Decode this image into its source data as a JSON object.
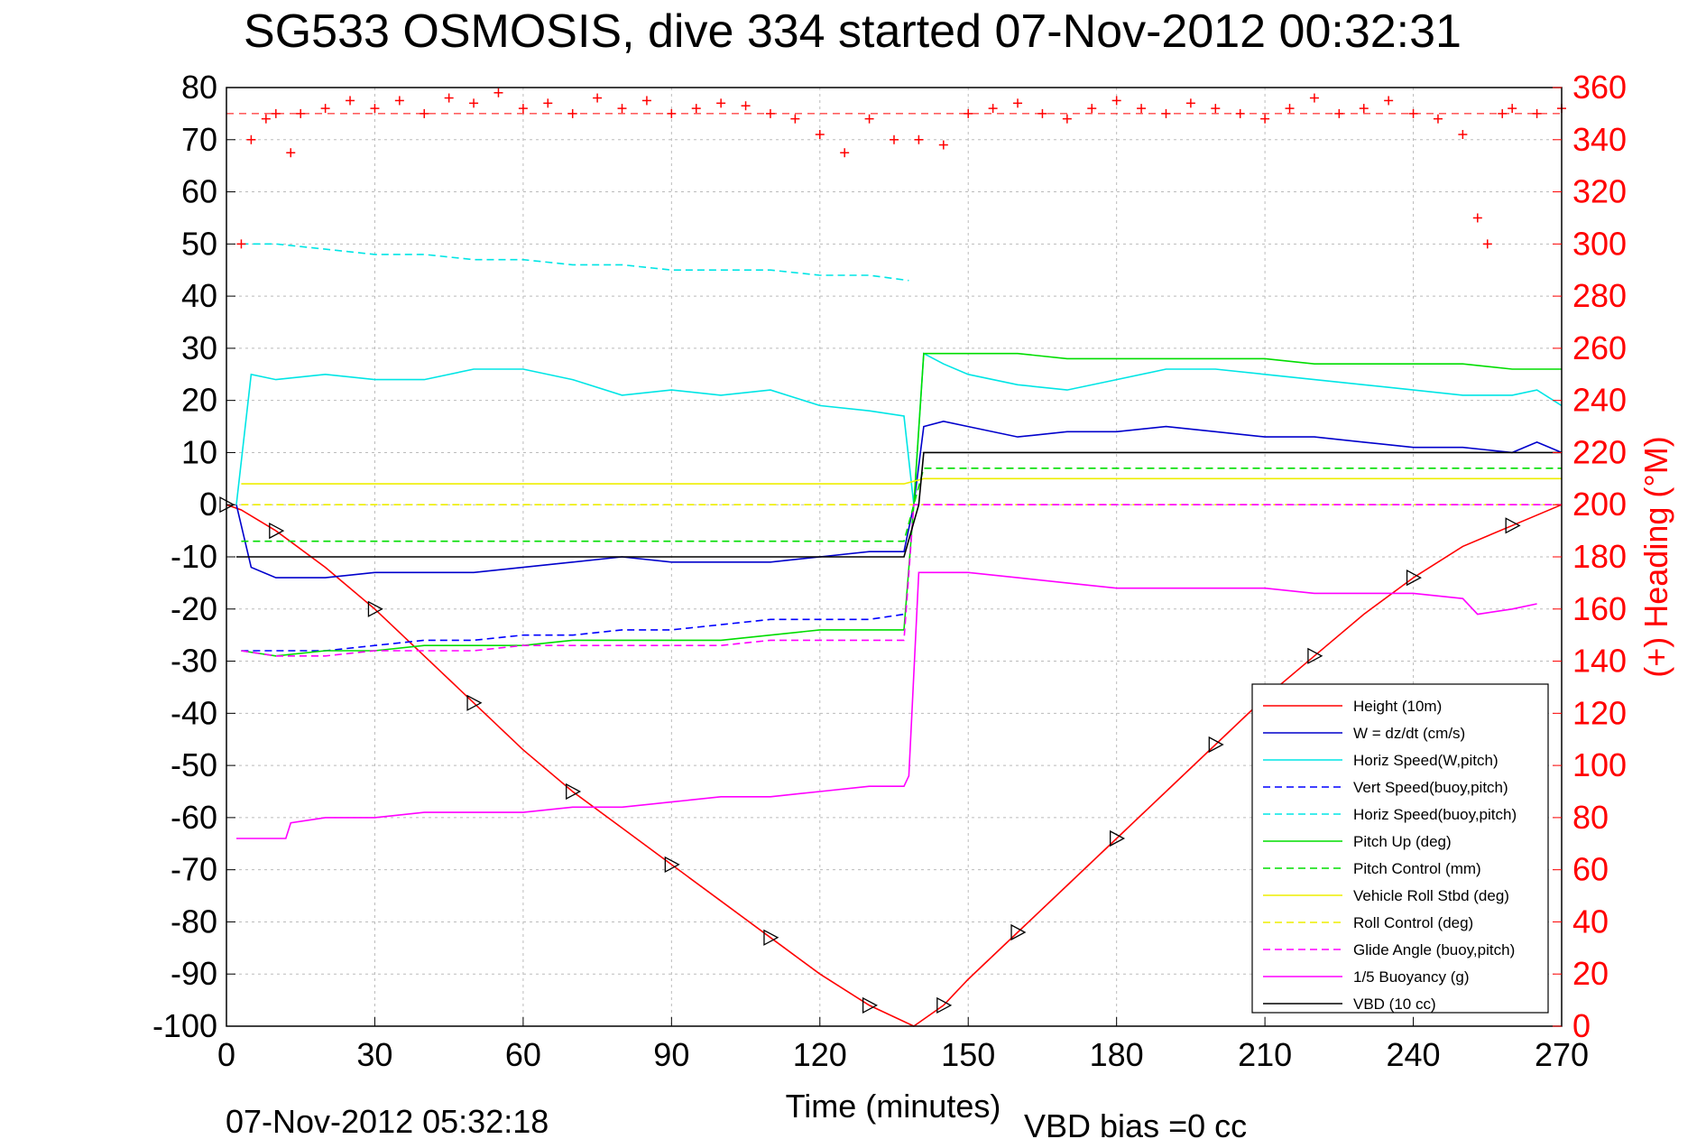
{
  "chart_data": {
    "type": "line",
    "title": "SG533 OSMOSIS, dive 334 started 07-Nov-2012 00:32:31",
    "xlabel": "Time (minutes)",
    "ylabel_right": "(+) Heading (°M)",
    "xlim": [
      0,
      270
    ],
    "ylim": [
      -100,
      80
    ],
    "ylim_right": [
      0,
      360
    ],
    "x_ticks": [
      0,
      30,
      60,
      90,
      120,
      150,
      180,
      210,
      240,
      270
    ],
    "y_ticks": [
      80,
      70,
      60,
      50,
      40,
      30,
      20,
      10,
      0,
      -10,
      -20,
      -30,
      -40,
      -50,
      -60,
      -70,
      -80,
      -90,
      -100
    ],
    "y_ticks_right": [
      360,
      340,
      320,
      300,
      280,
      260,
      240,
      220,
      200,
      180,
      160,
      140,
      120,
      100,
      80,
      60,
      40,
      20,
      0
    ],
    "grid": true,
    "legend_position": "bottom-right",
    "footer_left": "07-Nov-2012 05:32:18",
    "footer_right": "VBD bias =0 cc",
    "series": [
      {
        "name": "Height (10m)",
        "color": "#ff0000",
        "style": "solid",
        "x": [
          0,
          3,
          10,
          20,
          30,
          40,
          50,
          60,
          70,
          80,
          90,
          100,
          110,
          120,
          130,
          139,
          145,
          150,
          160,
          170,
          180,
          190,
          200,
          210,
          220,
          230,
          240,
          250,
          260,
          270
        ],
        "y": [
          0,
          -1,
          -5,
          -12,
          -20,
          -29,
          -38,
          -47,
          -55,
          -62,
          -69,
          -76,
          -83,
          -90,
          -96,
          -100,
          -96,
          -91,
          -82,
          -73,
          -64,
          -55,
          -46,
          -37,
          -29,
          -21,
          -14,
          -8,
          -4,
          0
        ]
      },
      {
        "name": "W = dz/dt (cm/s)",
        "color": "#0000cc",
        "style": "solid",
        "x": [
          2,
          5,
          10,
          20,
          30,
          40,
          50,
          60,
          70,
          80,
          90,
          100,
          110,
          120,
          130,
          137,
          139,
          141,
          145,
          150,
          160,
          170,
          180,
          190,
          200,
          210,
          220,
          230,
          240,
          250,
          260,
          265,
          270
        ],
        "y": [
          0,
          -12,
          -14,
          -14,
          -13,
          -13,
          -13,
          -12,
          -11,
          -10,
          -11,
          -11,
          -11,
          -10,
          -9,
          -9,
          0,
          15,
          16,
          15,
          13,
          14,
          14,
          15,
          14,
          13,
          13,
          12,
          11,
          11,
          10,
          12,
          10
        ]
      },
      {
        "name": "Horiz Speed(W,pitch)",
        "color": "#00e5e5",
        "style": "solid",
        "x": [
          2,
          5,
          10,
          20,
          30,
          40,
          50,
          60,
          70,
          80,
          90,
          100,
          110,
          120,
          130,
          137,
          139,
          141,
          145,
          150,
          160,
          170,
          180,
          190,
          200,
          210,
          220,
          230,
          240,
          250,
          260,
          265,
          270
        ],
        "y": [
          0,
          25,
          24,
          25,
          24,
          24,
          26,
          26,
          24,
          21,
          22,
          21,
          22,
          19,
          18,
          17,
          0,
          29,
          27,
          25,
          23,
          22,
          24,
          26,
          26,
          25,
          24,
          23,
          22,
          21,
          21,
          22,
          19
        ]
      },
      {
        "name": "Vert Speed(buoy,pitch)",
        "color": "#0000ff",
        "style": "dashed",
        "x": [
          3,
          10,
          20,
          30,
          40,
          50,
          60,
          70,
          80,
          90,
          100,
          110,
          120,
          130,
          137
        ],
        "y": [
          -28,
          -28,
          -28,
          -27,
          -26,
          -26,
          -25,
          -25,
          -24,
          -24,
          -23,
          -22,
          -22,
          -22,
          -21
        ]
      },
      {
        "name": "Horiz Speed(buoy,pitch)",
        "color": "#00e5e5",
        "style": "dashed",
        "x": [
          3,
          10,
          20,
          30,
          40,
          50,
          60,
          70,
          80,
          90,
          100,
          110,
          120,
          130,
          138
        ],
        "y": [
          50,
          50,
          49,
          48,
          48,
          47,
          47,
          46,
          46,
          45,
          45,
          45,
          44,
          44,
          43
        ]
      },
      {
        "name": "Pitch Up (deg)",
        "color": "#00dd00",
        "style": "solid",
        "x": [
          3,
          10,
          20,
          30,
          40,
          50,
          60,
          70,
          80,
          90,
          100,
          110,
          120,
          130,
          137,
          139,
          141,
          150,
          160,
          170,
          180,
          190,
          200,
          210,
          220,
          230,
          240,
          250,
          260,
          270
        ],
        "y": [
          -28,
          -29,
          -28,
          -28,
          -27,
          -27,
          -27,
          -26,
          -26,
          -26,
          -26,
          -25,
          -24,
          -24,
          -24,
          0,
          29,
          29,
          29,
          28,
          28,
          28,
          28,
          28,
          27,
          27,
          27,
          27,
          26,
          26
        ]
      },
      {
        "name": "Pitch Control (mm)",
        "color": "#00dd00",
        "style": "dashed",
        "x": [
          3,
          30,
          60,
          90,
          120,
          137,
          139,
          141,
          170,
          200,
          230,
          260,
          270
        ],
        "y": [
          -7,
          -7,
          -7,
          -7,
          -7,
          -7,
          0,
          7,
          7,
          7,
          7,
          7,
          7
        ]
      },
      {
        "name": "Vehicle Roll Stbd (deg)",
        "color": "#eeee00",
        "style": "solid",
        "x": [
          3,
          20,
          40,
          60,
          80,
          100,
          120,
          137,
          141,
          160,
          180,
          200,
          220,
          240,
          260,
          270
        ],
        "y": [
          4,
          4,
          4,
          4,
          4,
          4,
          4,
          4,
          5,
          5,
          5,
          5,
          5,
          5,
          5,
          5
        ]
      },
      {
        "name": "Roll Control (deg)",
        "color": "#eeee00",
        "style": "dashed",
        "x": [
          3,
          30,
          60,
          90,
          120,
          137,
          141,
          170,
          200,
          230,
          260,
          270
        ],
        "y": [
          0,
          0,
          0,
          0,
          0,
          0,
          0,
          0,
          0,
          0,
          0,
          0
        ]
      },
      {
        "name": "Glide Angle (buoy,pitch)",
        "color": "#ff00ff",
        "style": "dashed",
        "x": [
          3,
          10,
          20,
          30,
          40,
          50,
          60,
          70,
          80,
          90,
          100,
          110,
          120,
          130,
          137,
          139,
          141,
          170,
          200,
          230,
          260,
          270
        ],
        "y": [
          -28,
          -29,
          -29,
          -28,
          -28,
          -28,
          -27,
          -27,
          -27,
          -27,
          -27,
          -26,
          -26,
          -26,
          -26,
          0,
          0,
          0,
          0,
          0,
          0,
          0
        ]
      },
      {
        "name": "1/5 Buoyancy (g)",
        "color": "#ff00ff",
        "style": "solid",
        "x": [
          2,
          12,
          13,
          20,
          30,
          40,
          50,
          60,
          70,
          80,
          90,
          100,
          110,
          120,
          130,
          137,
          138,
          140,
          145,
          150,
          160,
          170,
          180,
          190,
          200,
          210,
          220,
          230,
          240,
          250,
          253,
          260,
          265
        ],
        "y": [
          -64,
          -64,
          -61,
          -60,
          -60,
          -59,
          -59,
          -59,
          -58,
          -58,
          -57,
          -56,
          -56,
          -55,
          -54,
          -54,
          -52,
          -13,
          -13,
          -13,
          -14,
          -15,
          -16,
          -16,
          -16,
          -16,
          -17,
          -17,
          -17,
          -18,
          -21,
          -20,
          -19
        ]
      },
      {
        "name": "VBD (10 cc)",
        "color": "#000000",
        "style": "solid",
        "x": [
          2,
          30,
          60,
          90,
          120,
          137,
          140,
          141,
          170,
          200,
          230,
          260,
          270
        ],
        "y": [
          -10,
          -10,
          -10,
          -10,
          -10,
          -10,
          0,
          10,
          10,
          10,
          10,
          10,
          10
        ]
      },
      {
        "name": "",
        "color": "#ff0000",
        "style": "marker-plus",
        "axis": "right",
        "x": [
          3,
          5,
          8,
          10,
          13,
          15,
          20,
          25,
          30,
          35,
          40,
          45,
          50,
          55,
          60,
          65,
          70,
          75,
          80,
          85,
          90,
          95,
          100,
          105,
          110,
          115,
          120,
          125,
          130,
          135,
          140,
          145,
          150,
          155,
          160,
          165,
          170,
          175,
          180,
          185,
          190,
          195,
          200,
          205,
          210,
          215,
          220,
          225,
          230,
          235,
          240,
          245,
          250,
          253,
          255,
          258,
          260,
          265,
          270
        ],
        "y": [
          300,
          340,
          348,
          350,
          335,
          350,
          352,
          355,
          352,
          355,
          350,
          356,
          354,
          358,
          352,
          354,
          350,
          356,
          352,
          355,
          350,
          352,
          354,
          353,
          350,
          348,
          342,
          335,
          348,
          340,
          340,
          338,
          350,
          352,
          354,
          350,
          348,
          352,
          355,
          352,
          350,
          354,
          352,
          350,
          348,
          352,
          356,
          350,
          352,
          355,
          350,
          348,
          342,
          310,
          300,
          350,
          352,
          350,
          352
        ]
      }
    ]
  }
}
